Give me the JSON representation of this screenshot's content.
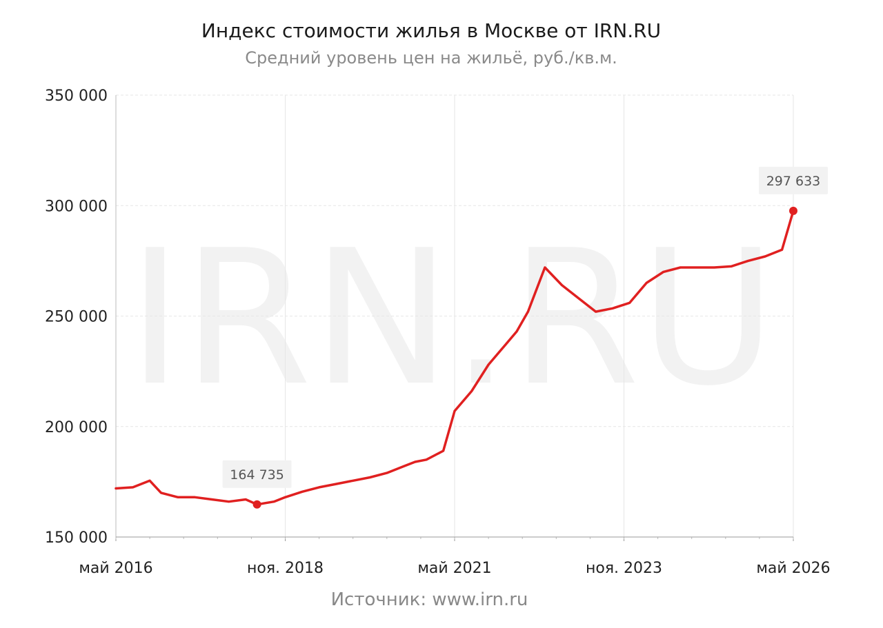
{
  "title": "Индекс стоимости жилья в Москве от IRN.RU",
  "subtitle": "Средний уровень цен на жильё, руб./кв.м.",
  "source": "Источник: www.irn.ru",
  "watermark": "IRN.RU",
  "colors": {
    "line": "#e02020",
    "grid": "#e6e6e6",
    "callout_bg": "#f2f2f2"
  },
  "chart_data": {
    "type": "line",
    "title": "Индекс стоимости жилья в Москве от IRN.RU",
    "subtitle": "Средний уровень цен на жильё, руб./кв.м.",
    "xlabel": "",
    "ylabel": "",
    "ylim": [
      150000,
      350000
    ],
    "xlim": [
      "2016-05",
      "2026-05"
    ],
    "grid": true,
    "y_ticks": [
      150000,
      200000,
      250000,
      300000,
      350000
    ],
    "y_tick_labels": [
      "150 000",
      "200 000",
      "250 000",
      "300 000",
      "350 000"
    ],
    "x_ticks": [
      "2016-05",
      "2018-11",
      "2021-05",
      "2023-11",
      "2026-05"
    ],
    "x_tick_labels": [
      "май 2016",
      "ноя. 2018",
      "май 2021",
      "ноя. 2023",
      "май 2026"
    ],
    "series": [
      {
        "color": "#e02020",
        "x": [
          "2016-05",
          "2016-08",
          "2016-11",
          "2017-01",
          "2017-04",
          "2017-07",
          "2017-10",
          "2018-01",
          "2018-04",
          "2018-06",
          "2018-09",
          "2018-11",
          "2019-02",
          "2019-05",
          "2019-08",
          "2019-11",
          "2020-02",
          "2020-05",
          "2020-08",
          "2020-10",
          "2020-12",
          "2021-03",
          "2021-05",
          "2021-08",
          "2021-11",
          "2022-02",
          "2022-04",
          "2022-06",
          "2022-09",
          "2022-12",
          "2023-03",
          "2023-06",
          "2023-09",
          "2023-12",
          "2024-03",
          "2024-06",
          "2024-09",
          "2024-12",
          "2025-03",
          "2025-06",
          "2025-09",
          "2025-12",
          "2026-03",
          "2026-05"
        ],
        "y": [
          172000,
          172500,
          175500,
          170000,
          168000,
          168000,
          167000,
          166000,
          167000,
          164735,
          166000,
          168000,
          170500,
          172500,
          174000,
          175500,
          177000,
          179000,
          182000,
          184000,
          185000,
          189000,
          207000,
          216000,
          228000,
          237000,
          243000,
          252000,
          272000,
          264000,
          258000,
          252000,
          253500,
          256000,
          265000,
          270000,
          272000,
          272000,
          272000,
          272500,
          275000,
          277000,
          280000,
          297633
        ]
      }
    ],
    "annotations": [
      {
        "x": "2018-06",
        "y": 164735,
        "label": "164 735"
      },
      {
        "x": "2026-05",
        "y": 297633,
        "label": "297 633"
      }
    ]
  }
}
